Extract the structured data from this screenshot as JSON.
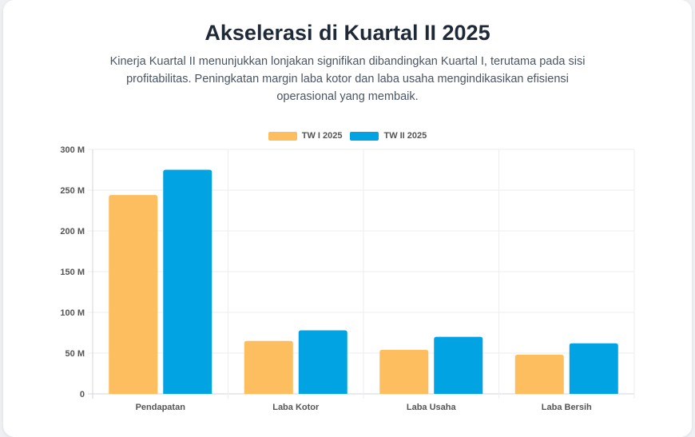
{
  "header": {
    "title": "Akselerasi di Kuartal II 2025",
    "subtitle": "Kinerja Kuartal II menunjukkan lonjakan signifikan dibandingkan Kuartal I, terutama pada sisi profitabilitas. Peningkatan margin laba kotor dan laba usaha mengindikasikan efisiensi operasional yang membaik."
  },
  "chart_data": {
    "type": "bar",
    "categories": [
      "Pendapatan",
      "Laba Kotor",
      "Laba Usaha",
      "Laba Bersih"
    ],
    "series": [
      {
        "name": "TW I 2025",
        "values": [
          244,
          65,
          54,
          48
        ],
        "color": "#fdbe5f"
      },
      {
        "name": "TW II 2025",
        "values": [
          275,
          78,
          70,
          62
        ],
        "color": "#02a3e3"
      }
    ],
    "ylim": [
      0,
      300
    ],
    "yticks": [
      0,
      50,
      100,
      150,
      200,
      250,
      300
    ],
    "ytick_labels": [
      "0",
      "50 M",
      "100 M",
      "150 M",
      "200 M",
      "250 M",
      "300 M"
    ],
    "grid": true,
    "legend_position": "top"
  }
}
